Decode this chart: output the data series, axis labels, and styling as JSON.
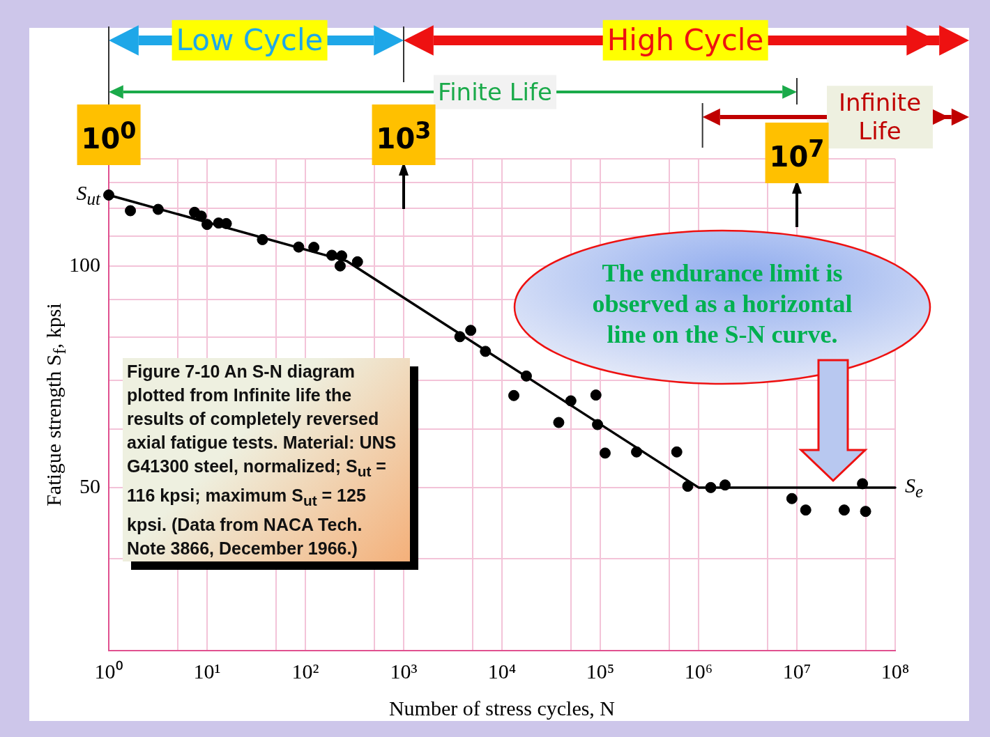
{
  "chart_data": {
    "type": "scatter",
    "xlabel": "Number of stress cycles, N",
    "ylabel": "Fatigue strength S$_{f}$, kpsi",
    "log": "xy",
    "grid": true,
    "legend": false,
    "marker": "circle",
    "xlim": [
      1,
      100000000
    ],
    "ylim": [
      30,
      140
    ],
    "xticks": [
      {
        "value": 1,
        "label": "10⁰"
      },
      {
        "value": 5,
        "label": null
      },
      {
        "value": 10,
        "label": "10¹"
      },
      {
        "value": 50,
        "label": null
      },
      {
        "value": 100,
        "label": "10²"
      },
      {
        "value": 500,
        "label": null
      },
      {
        "value": 1000,
        "label": "10³"
      },
      {
        "value": 5000,
        "label": null
      },
      {
        "value": 10000,
        "label": "10⁴"
      },
      {
        "value": 50000,
        "label": null
      },
      {
        "value": 100000,
        "label": "10⁵"
      },
      {
        "value": 500000,
        "label": null
      },
      {
        "value": 1000000,
        "label": "10⁶"
      },
      {
        "value": 5000000,
        "label": null
      },
      {
        "value": 10000000,
        "label": "10⁷"
      },
      {
        "value": 50000000,
        "label": null
      },
      {
        "value": 100000000,
        "label": "10⁸"
      }
    ],
    "yticks": [
      {
        "value": 30,
        "label": null
      },
      {
        "value": 40,
        "label": null
      },
      50,
      {
        "value": 60,
        "label": null
      },
      {
        "value": 70,
        "label": null
      },
      {
        "value": 80,
        "label": null
      },
      {
        "value": 90,
        "label": null
      },
      100,
      {
        "value": 110,
        "label": null
      },
      {
        "value": 120,
        "label": null
      },
      {
        "value": 130,
        "label": null
      },
      {
        "value": 140,
        "label": null
      }
    ],
    "series": [
      {
        "color": "#000000",
        "x": [
          1,
          1.66,
          3.18,
          7.46,
          8.73,
          10,
          13.1,
          15.7,
          36.6,
          85.5,
          122,
          186,
          234,
          226,
          339,
          3730,
          4810,
          6790,
          17700,
          13200,
          50200,
          90300,
          37800,
          93800,
          112000,
          234000,
          600000,
          776000,
          1330000,
          1860000,
          8900000,
          12300000,
          30300000,
          46500000,
          50000000
        ],
        "values": [
          125,
          119,
          119.5,
          118.4,
          117,
          114,
          114.5,
          114.3,
          108.7,
          106.2,
          106.1,
          103.5,
          103.3,
          100.1,
          101.4,
          80.2,
          81.8,
          76.6,
          70.9,
          66.7,
          65.6,
          66.8,
          61.3,
          60.9,
          55.7,
          55.9,
          55.9,
          50.2,
          50,
          50.4,
          48.3,
          46.6,
          46.6,
          50.6,
          46.4
        ]
      },
      {
        "type": "line",
        "color": "#000000",
        "marker": "none",
        "x": [
          1,
          265,
          1000000,
          100000000
        ],
        "values": [
          125,
          101.6,
          50,
          50
        ]
      }
    ],
    "annotations": [
      "10$^{0}$",
      "10$^{3}$",
      "10$^{7}$",
      {
        "text": "S$_{ut}$",
        "x": 1,
        "y": 125
      },
      {
        "text": "S$_{e}$",
        "x": 100000000,
        "y": 50
      },
      "Low Cycle",
      "High Cycle",
      "Finite Life",
      "Infinite Life",
      "The endurance limit is observed as a horizontal line on the S-N curve.",
      "Figure 7-10 An S-N diagram plotted from Infinite life the results of completely reversed axial fatigue tests. Material: UNS G41300 steel, normalized; S$_{ut}$ = 116 kpsi; maximum S$_{ut}$ = 125 kpsi. (Data from NACA Tech. Note 3866, December 1966.)"
    ]
  }
}
